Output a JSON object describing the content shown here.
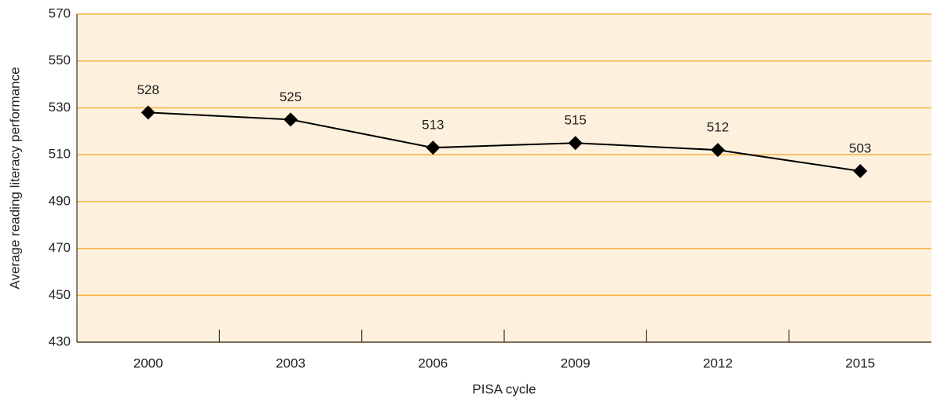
{
  "chart_data": {
    "type": "line",
    "x_label": "PISA cycle",
    "y_label": "Average reading literacy performance",
    "categories": [
      "2000",
      "2003",
      "2006",
      "2009",
      "2012",
      "2015"
    ],
    "values": [
      528,
      525,
      513,
      515,
      512,
      503
    ],
    "color": "#000000",
    "background": "#fdf1dd",
    "grid_color": "#f6b13c",
    "ylim": [
      430,
      570
    ],
    "yticks": [
      430,
      450,
      470,
      490,
      510,
      530,
      550,
      570
    ],
    "grid": true
  }
}
